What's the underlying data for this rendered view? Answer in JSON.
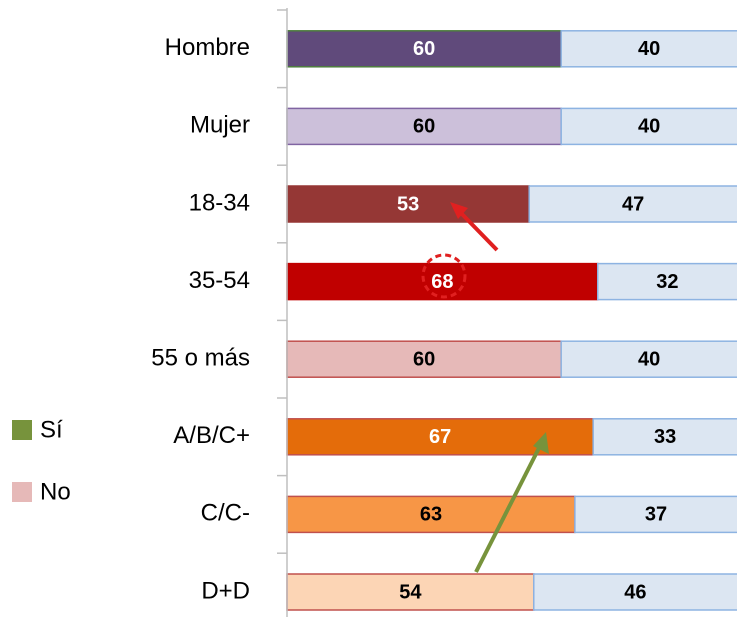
{
  "chart_data": {
    "type": "stacked_bar_horizontal",
    "categories": [
      "Hombre",
      "Mujer",
      "18-34",
      "35-54",
      "55 o más",
      "A/B/C+",
      "C/C-",
      "D+D"
    ],
    "series": [
      {
        "name": "Sí",
        "color": "#77933c",
        "values": [
          60,
          60,
          53,
          68,
          60,
          67,
          63,
          54
        ],
        "colors": [
          "#604a7b",
          "#ccc0da",
          "#953735",
          "#c00000",
          "#e6b9b8",
          "#e46c0a",
          "#f79646",
          "#fcd5b5"
        ],
        "label_colors": [
          "#ffffff",
          "#000000",
          "#ffffff",
          "#ffffff",
          "#000000",
          "#ffffff",
          "#000000",
          "#000000"
        ]
      },
      {
        "name": "No",
        "color": "#e6b9b8",
        "values": [
          40,
          40,
          47,
          32,
          40,
          33,
          37,
          46
        ],
        "colors": [
          "#dce6f2",
          "#dce6f2",
          "#dce6f2",
          "#dce6f2",
          "#dce6f2",
          "#dce6f2",
          "#dce6f2",
          "#dce6f2"
        ],
        "label_colors": [
          "#000000",
          "#000000",
          "#000000",
          "#000000",
          "#000000",
          "#000000",
          "#000000",
          "#000000"
        ]
      }
    ],
    "xlim": [
      0,
      100
    ],
    "legend": "left"
  }
}
